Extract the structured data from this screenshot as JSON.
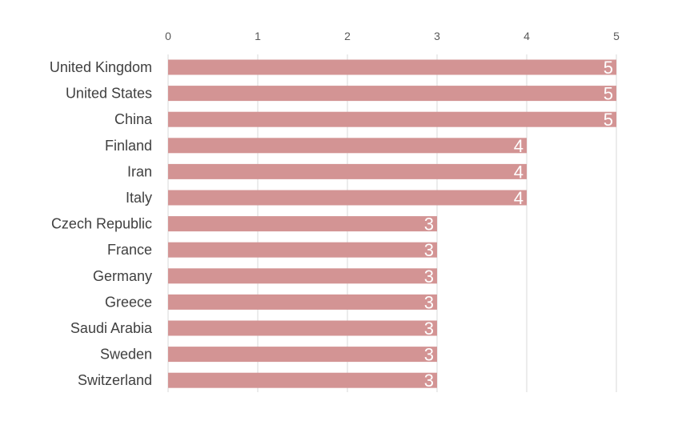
{
  "chart_data": {
    "type": "bar",
    "orientation": "horizontal",
    "title": "",
    "xlabel": "",
    "ylabel": "",
    "categories": [
      "United Kingdom",
      "United States",
      "China",
      "Finland",
      "Iran",
      "Italy",
      "Czech Republic",
      "France",
      "Germany",
      "Greece",
      "Saudi Arabia",
      "Sweden",
      "Switzerland"
    ],
    "values": [
      5,
      5,
      5,
      4,
      4,
      4,
      3,
      3,
      3,
      3,
      3,
      3,
      3
    ],
    "xlim": [
      0,
      5
    ],
    "xticks": [
      0,
      1,
      2,
      3,
      4,
      5
    ],
    "x_axis_position": "top",
    "grid": true,
    "legend": "none",
    "data_labels": true
  },
  "colors": {
    "bar": "#d39494",
    "grid": "#d9d9d9",
    "data_label": "#ffffff",
    "category_text": "#404040",
    "tick_text": "#595959"
  }
}
